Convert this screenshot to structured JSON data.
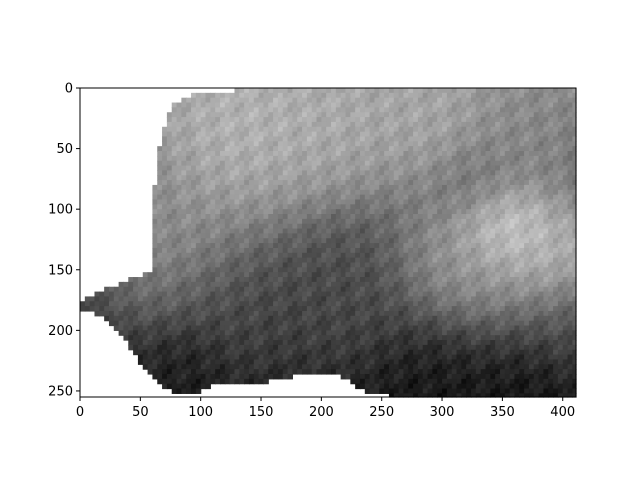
{
  "chart_data": {
    "type": "heatmap",
    "colormap": "gray",
    "background": "#ffffff",
    "axis_color": "#000000",
    "title": "",
    "xlabel": "",
    "ylabel": "",
    "xlim": [
      0,
      411
    ],
    "ylim": [
      255,
      0
    ],
    "x_ticks": [
      0,
      50,
      100,
      150,
      200,
      250,
      300,
      350,
      400
    ],
    "y_ticks": [
      0,
      50,
      100,
      150,
      200,
      250
    ],
    "x_tick_labels": [
      "0",
      "50",
      "100",
      "150",
      "200",
      "250",
      "300",
      "350",
      "400"
    ],
    "y_tick_labels": [
      "0",
      "50",
      "100",
      "150",
      "200",
      "250"
    ],
    "grid": false,
    "legend": "none",
    "land_outline": {
      "description": "rows x cols of valid (non-NaN) data region, in data units",
      "top_boundary": [
        [
          0,
          150
        ],
        [
          5,
          92
        ],
        [
          15,
          75
        ],
        [
          25,
          72
        ],
        [
          40,
          68
        ],
        [
          60,
          64
        ],
        [
          80,
          62
        ],
        [
          100,
          62
        ],
        [
          120,
          62
        ],
        [
          150,
          60
        ],
        [
          175,
          0
        ],
        [
          180,
          0
        ]
      ],
      "bottom_boundary": [
        [
          0,
          182
        ],
        [
          20,
          188
        ],
        [
          35,
          205
        ],
        [
          50,
          228
        ],
        [
          60,
          238
        ],
        [
          70,
          246
        ],
        [
          80,
          252
        ],
        [
          90,
          252
        ],
        [
          100,
          250
        ],
        [
          110,
          245
        ],
        [
          130,
          244
        ],
        [
          150,
          243
        ],
        [
          170,
          240
        ],
        [
          180,
          236
        ],
        [
          190,
          234
        ],
        [
          200,
          234
        ],
        [
          210,
          234
        ],
        [
          220,
          240
        ],
        [
          230,
          248
        ],
        [
          240,
          252
        ],
        [
          250,
          252
        ],
        [
          260,
          255
        ],
        [
          411,
          255
        ]
      ]
    },
    "intensity_field": {
      "description": "gray intensity 0 (black) to 1 (white); approximate centers of bright/dark blobs in data units",
      "base_top": 0.55,
      "base_bottom": 0.12,
      "blobs": [
        {
          "x": 130,
          "y": 40,
          "r": 60,
          "v": 0.78
        },
        {
          "x": 210,
          "y": 30,
          "r": 50,
          "v": 0.72
        },
        {
          "x": 290,
          "y": 25,
          "r": 45,
          "v": 0.7
        },
        {
          "x": 360,
          "y": 45,
          "r": 40,
          "v": 0.55
        },
        {
          "x": 350,
          "y": 110,
          "r": 30,
          "v": 0.95
        },
        {
          "x": 390,
          "y": 140,
          "r": 40,
          "v": 0.85
        },
        {
          "x": 320,
          "y": 150,
          "r": 50,
          "v": 0.7
        },
        {
          "x": 80,
          "y": 130,
          "r": 50,
          "v": 0.62
        },
        {
          "x": 220,
          "y": 170,
          "r": 45,
          "v": 0.3
        },
        {
          "x": 120,
          "y": 180,
          "r": 45,
          "v": 0.28
        },
        {
          "x": 90,
          "y": 230,
          "r": 30,
          "v": 0.1
        },
        {
          "x": 300,
          "y": 240,
          "r": 50,
          "v": 0.08
        },
        {
          "x": 380,
          "y": 245,
          "r": 35,
          "v": 0.05
        },
        {
          "x": 330,
          "y": 80,
          "r": 30,
          "v": 0.4
        },
        {
          "x": 400,
          "y": 200,
          "r": 40,
          "v": 0.35
        }
      ]
    }
  }
}
